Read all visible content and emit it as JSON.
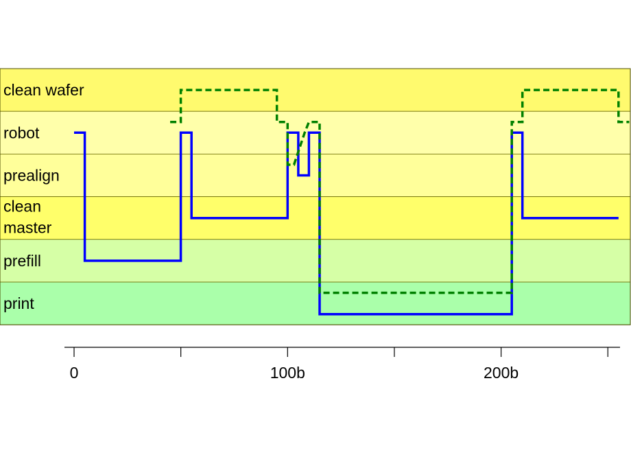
{
  "chart_data": {
    "type": "line",
    "step": true,
    "title": "",
    "xlabel": "",
    "ylabel": "",
    "xlim": [
      0,
      255
    ],
    "x_ticks": [
      0,
      50,
      100,
      150,
      200,
      250
    ],
    "x_tick_labels": [
      "0",
      "",
      "100b",
      "",
      "200b",
      ""
    ],
    "lanes": [
      {
        "label": "clean wafer",
        "color": "#fffa6e"
      },
      {
        "label": "robot",
        "color": "#ffffaa"
      },
      {
        "label": "prealign",
        "color": "#ffff9a"
      },
      {
        "label": "clean master",
        "color": "#ffff6a"
      },
      {
        "label": "prefill",
        "color": "#d6ffa6"
      },
      {
        "label": "print",
        "color": "#aaffaa"
      }
    ],
    "series": [
      {
        "color": "#0000ff",
        "dash": "solid",
        "points": [
          [
            0,
            1.5
          ],
          [
            5,
            1.5
          ],
          [
            5,
            4.5
          ],
          [
            50,
            4.5
          ],
          [
            50,
            1.5
          ],
          [
            55,
            1.5
          ],
          [
            55,
            3.5
          ],
          [
            100,
            3.5
          ],
          [
            100,
            1.5
          ],
          [
            105,
            1.5
          ],
          [
            105,
            2.5
          ],
          [
            110,
            2.5
          ],
          [
            110,
            1.5
          ],
          [
            115,
            1.5
          ],
          [
            115,
            5.75
          ],
          [
            205,
            5.75
          ],
          [
            205,
            1.5
          ],
          [
            210,
            1.5
          ],
          [
            210,
            3.5
          ],
          [
            255,
            3.5
          ]
        ]
      },
      {
        "color": "#008000",
        "dash": "dashed",
        "points": [
          [
            45,
            1.25
          ],
          [
            50,
            1.25
          ],
          [
            50,
            0.5
          ],
          [
            95,
            0.5
          ],
          [
            95,
            1.25
          ],
          [
            100,
            1.25
          ],
          [
            100,
            2.25
          ],
          [
            103,
            2.25
          ],
          [
            108,
            1.5
          ],
          [
            110,
            1.25
          ],
          [
            115,
            1.25
          ],
          [
            115,
            5.25
          ],
          [
            205,
            5.25
          ],
          [
            205,
            1.25
          ],
          [
            210,
            1.25
          ],
          [
            210,
            0.5
          ],
          [
            255,
            0.5
          ],
          [
            255,
            1.25
          ],
          [
            260,
            1.25
          ]
        ]
      }
    ]
  }
}
